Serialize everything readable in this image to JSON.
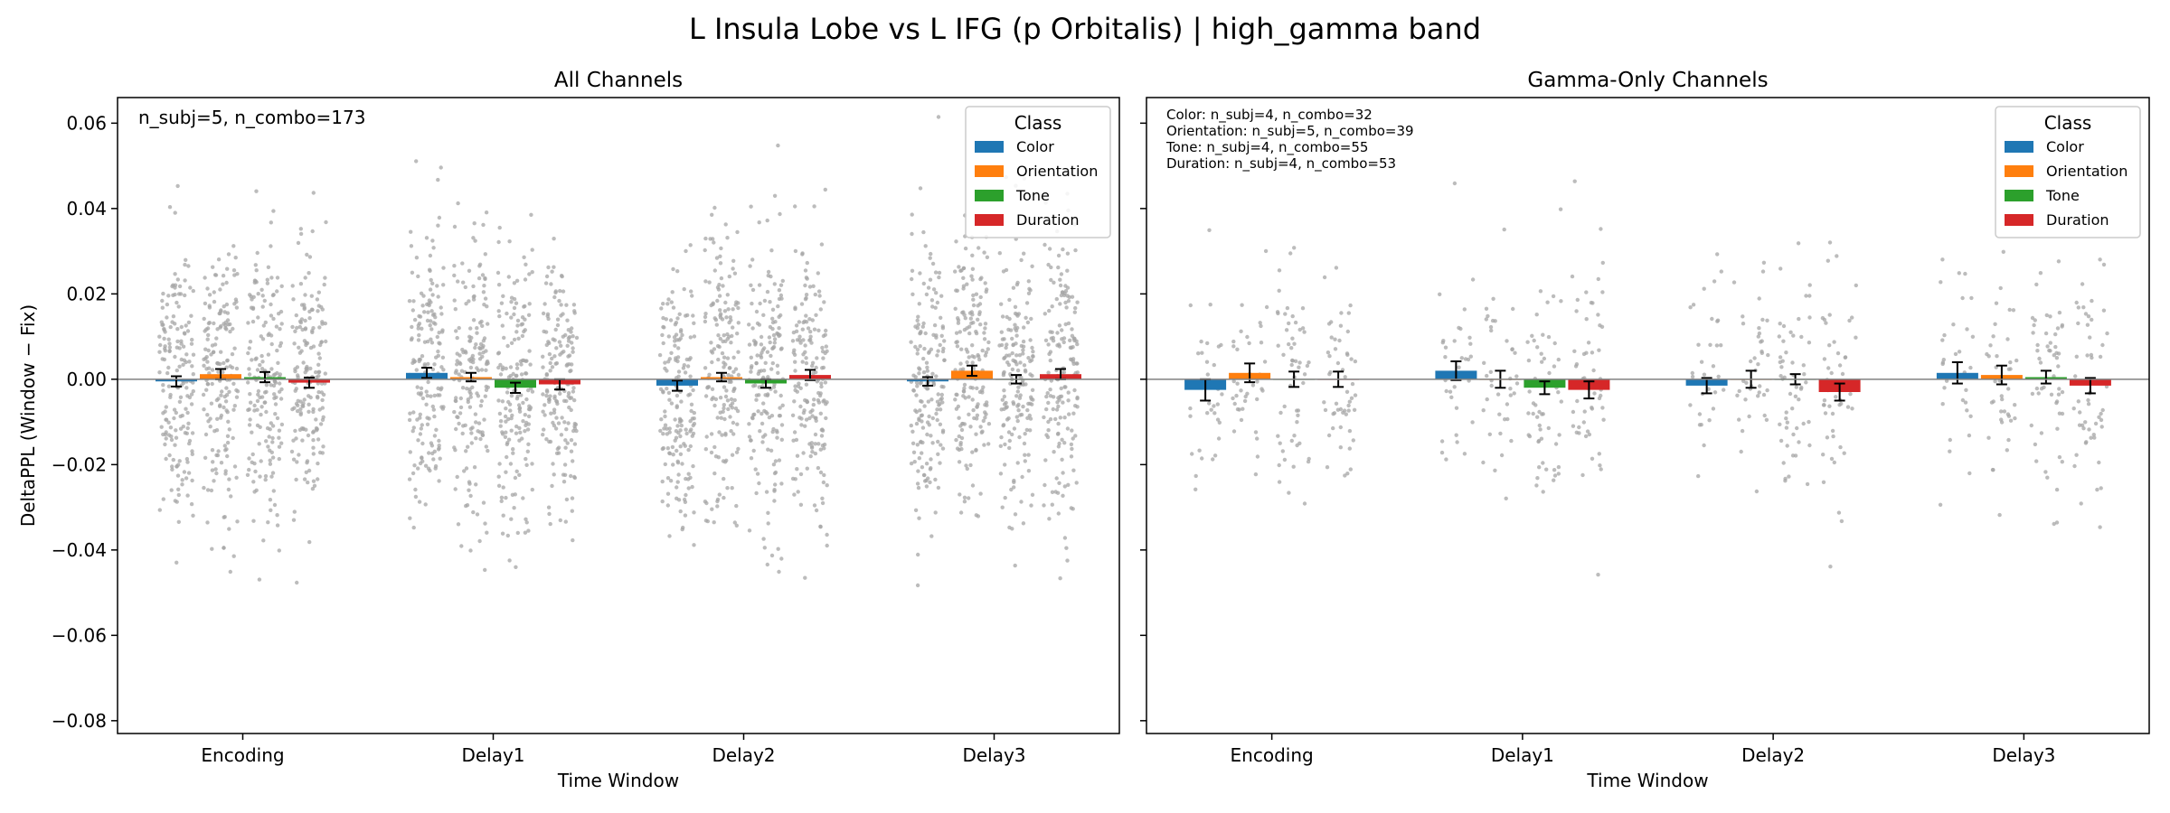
{
  "figure": {
    "suptitle": "L Insula Lobe vs L IFG (p Orbitalis)  |  high_gamma band"
  },
  "legend": {
    "title": "Class",
    "entries": [
      "Color",
      "Orientation",
      "Tone",
      "Duration"
    ]
  },
  "colors": {
    "Color": "#1f77b4",
    "Orientation": "#ff7f0e",
    "Tone": "#2ca02c",
    "Duration": "#d62728",
    "points": "#a6a6a6",
    "zero_line": "#808080"
  },
  "chart_data": [
    {
      "type": "bar",
      "title": "All Channels",
      "xlabel": "Time Window",
      "ylabel": "DeltaPPL (Window − Fix)",
      "ylim": [
        -0.083,
        0.066
      ],
      "yticks": [
        -0.08,
        -0.06,
        -0.04,
        -0.02,
        0.0,
        0.02,
        0.04,
        0.06
      ],
      "ytick_labels": [
        "−0.08",
        "−0.06",
        "−0.04",
        "−0.02",
        "0.00",
        "0.02",
        "0.04",
        "0.06"
      ],
      "grid": false,
      "legend_position": "top-right",
      "categories": [
        "Encoding",
        "Delay1",
        "Delay2",
        "Delay3"
      ],
      "annotation": [
        "n_subj=5, n_combo=173"
      ],
      "points_per_bar": 173,
      "series": [
        {
          "name": "Color",
          "values": [
            -0.0005,
            0.0015,
            -0.0015,
            -0.0005
          ],
          "err": [
            0.0012,
            0.0012,
            0.0012,
            0.001
          ]
        },
        {
          "name": "Orientation",
          "values": [
            0.0012,
            0.0005,
            0.0005,
            0.002
          ],
          "err": [
            0.0012,
            0.001,
            0.001,
            0.0012
          ]
        },
        {
          "name": "Tone",
          "values": [
            0.0005,
            -0.002,
            -0.001,
            0.0
          ],
          "err": [
            0.0012,
            0.0012,
            0.001,
            0.001
          ]
        },
        {
          "name": "Duration",
          "values": [
            -0.0008,
            -0.0012,
            0.001,
            0.0012
          ],
          "err": [
            0.0012,
            0.0012,
            0.0012,
            0.0012
          ]
        }
      ]
    },
    {
      "type": "bar",
      "title": "Gamma-Only Channels",
      "xlabel": "Time Window",
      "ylabel": "",
      "ylim": [
        -0.083,
        0.066
      ],
      "yticks": [
        -0.08,
        -0.06,
        -0.04,
        -0.02,
        0.0,
        0.02,
        0.04,
        0.06
      ],
      "grid": false,
      "legend_position": "top-right",
      "categories": [
        "Encoding",
        "Delay1",
        "Delay2",
        "Delay3"
      ],
      "annotation": [
        "Color: n_subj=4, n_combo=32",
        "Orientation: n_subj=5, n_combo=39",
        "Tone: n_subj=4, n_combo=55",
        "Duration: n_subj=4, n_combo=53"
      ],
      "points_per_series": [
        32,
        39,
        55,
        53
      ],
      "series": [
        {
          "name": "Color",
          "values": [
            -0.0025,
            0.002,
            -0.0015,
            0.0015
          ],
          "err": [
            0.0025,
            0.0022,
            0.0018,
            0.0025
          ]
        },
        {
          "name": "Orientation",
          "values": [
            0.0015,
            0.0,
            0.0,
            0.001
          ],
          "err": [
            0.0022,
            0.002,
            0.002,
            0.0022
          ]
        },
        {
          "name": "Tone",
          "values": [
            0.0,
            -0.002,
            0.0,
            0.0005
          ],
          "err": [
            0.0018,
            0.0015,
            0.0012,
            0.0015
          ]
        },
        {
          "name": "Duration",
          "values": [
            0.0,
            -0.0025,
            -0.003,
            -0.0015
          ],
          "err": [
            0.0018,
            0.002,
            0.002,
            0.0018
          ]
        }
      ]
    }
  ]
}
